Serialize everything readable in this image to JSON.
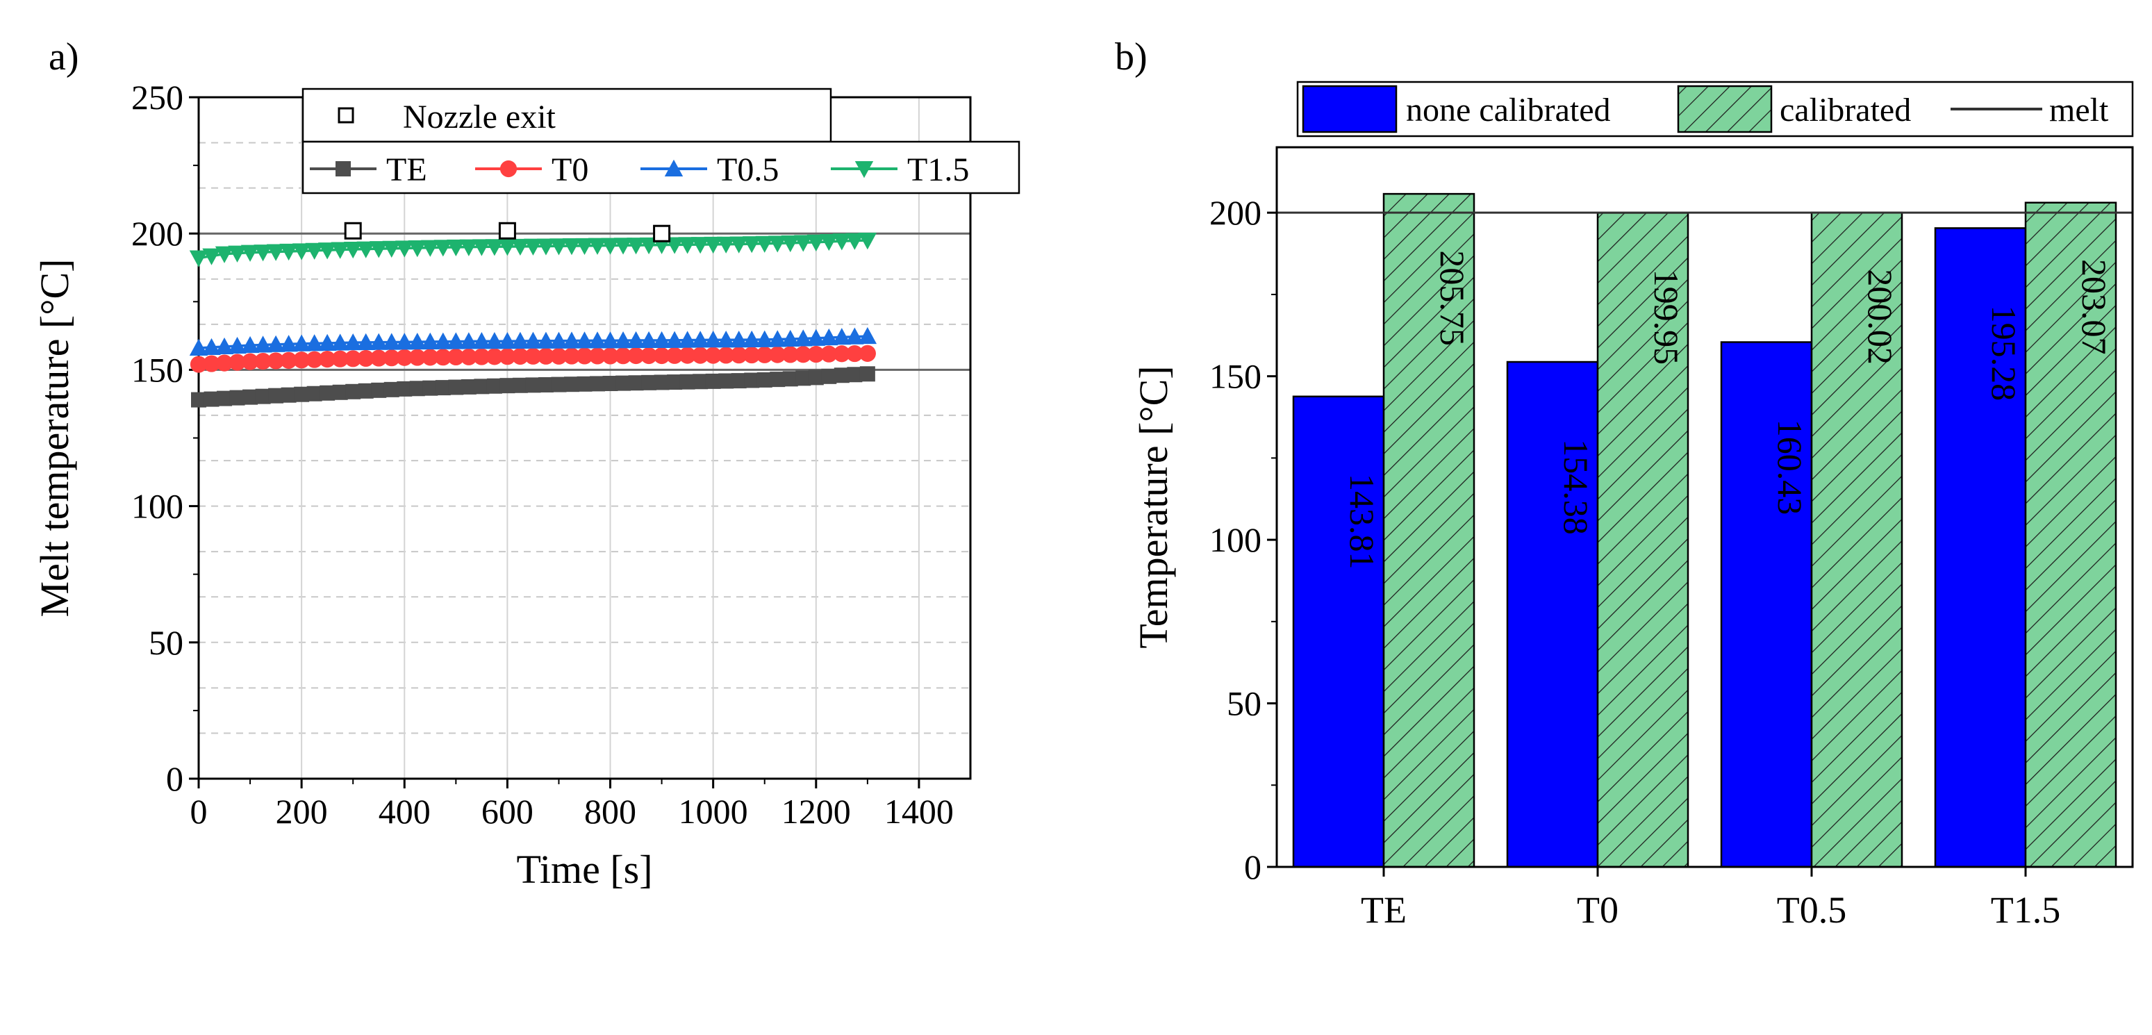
{
  "chart_data": [
    {
      "panel_label": "a)",
      "type": "line",
      "xlabel": "Time [s]",
      "ylabel": "Melt temperature [°C]",
      "xlim": [
        0,
        1500
      ],
      "ylim": [
        0,
        250
      ],
      "xticks": [
        "0",
        "200",
        "400",
        "600",
        "800",
        "1000",
        "1200",
        "1400"
      ],
      "yticks": [
        "0",
        "50",
        "100",
        "150",
        "200",
        "250"
      ],
      "x": [
        0,
        50,
        100,
        150,
        200,
        250,
        300,
        350,
        400,
        450,
        500,
        550,
        600,
        650,
        700,
        750,
        800,
        850,
        900,
        950,
        1000,
        1050,
        1100,
        1150,
        1200,
        1250,
        1300
      ],
      "series": [
        {
          "name": "TE",
          "color": "#4d4d4d",
          "marker": "square",
          "values": [
            139,
            139.5,
            140,
            140.5,
            141,
            141.5,
            142,
            142.5,
            143,
            143.3,
            143.6,
            143.9,
            144.2,
            144.4,
            144.6,
            144.8,
            145,
            145.2,
            145.4,
            145.6,
            145.8,
            146,
            146.3,
            146.7,
            147.2,
            148,
            148.5
          ]
        },
        {
          "name": "T0",
          "color": "#ff4040",
          "marker": "circle",
          "values": [
            152,
            152.5,
            153,
            153.3,
            153.6,
            153.9,
            154.1,
            154.3,
            154.5,
            154.6,
            154.7,
            154.8,
            154.9,
            155,
            155,
            155.1,
            155.1,
            155.2,
            155.2,
            155.3,
            155.3,
            155.4,
            155.5,
            155.6,
            155.7,
            155.9,
            156
          ]
        },
        {
          "name": "T0.5",
          "color": "#1a6ee0",
          "marker": "triangle-up",
          "values": [
            158,
            158.5,
            159,
            159.3,
            159.6,
            159.8,
            160,
            160.1,
            160.2,
            160.3,
            160.4,
            160.5,
            160.5,
            160.6,
            160.6,
            160.7,
            160.7,
            160.8,
            160.8,
            160.9,
            161,
            161,
            161.1,
            161.3,
            161.6,
            162,
            162.3
          ]
        },
        {
          "name": "T1.5",
          "color": "#1db36e",
          "marker": "triangle-down",
          "values": [
            191,
            192.5,
            193,
            193.3,
            193.6,
            193.9,
            194.2,
            194.4,
            194.6,
            194.8,
            195,
            195.1,
            195.2,
            195.3,
            195.4,
            195.5,
            195.6,
            195.7,
            195.8,
            195.9,
            196,
            196.1,
            196.3,
            196.5,
            196.8,
            197.2,
            197.5
          ]
        }
      ],
      "nozzle_exit": {
        "name": "Nozzle exit",
        "x": [
          300,
          600,
          900
        ],
        "values": [
          201,
          201,
          200
        ]
      },
      "reference_lines": [
        150,
        200
      ]
    },
    {
      "panel_label": "b)",
      "type": "bar",
      "ylabel": "Temperature [°C]",
      "ylim": [
        0,
        220
      ],
      "yticks": [
        "0",
        "50",
        "100",
        "150",
        "200"
      ],
      "categories": [
        "TE",
        "T0",
        "T0.5",
        "T1.5"
      ],
      "series": [
        {
          "name": "none calibrated",
          "color": "#0000ff",
          "values": [
            143.81,
            154.38,
            160.43,
            195.28
          ],
          "labels": [
            "143.81",
            "154.38",
            "160.43",
            "195.28"
          ]
        },
        {
          "name": "calibrated",
          "color": "#7ed39c",
          "hatch": true,
          "values": [
            205.75,
            199.95,
            200.02,
            203.07
          ],
          "labels": [
            "205.75",
            "199.95",
            "200.02",
            "203.07"
          ]
        }
      ],
      "melt": {
        "name": "melt",
        "value": 200,
        "color": "#333333"
      }
    }
  ]
}
